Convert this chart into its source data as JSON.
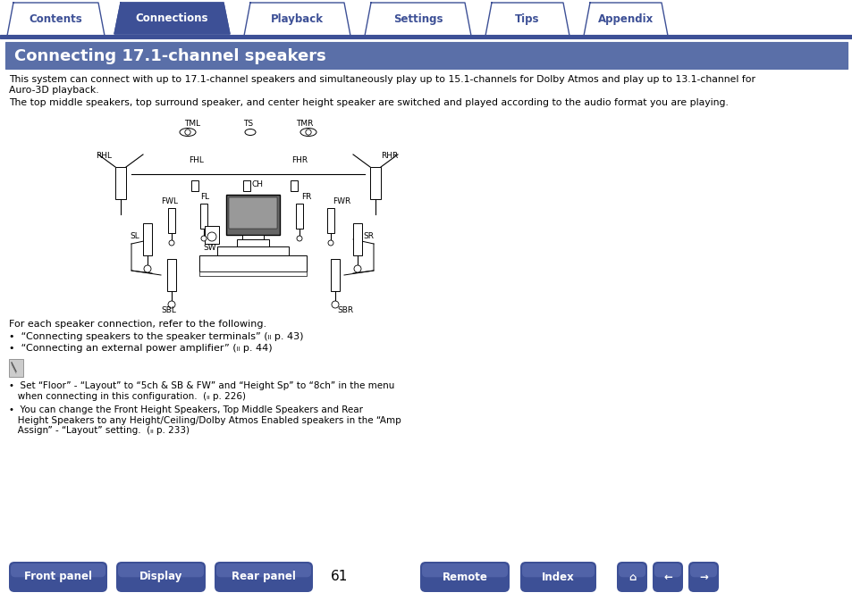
{
  "title": "Connecting 17.1-channel speakers",
  "title_bg": "#5a6fa8",
  "title_color": "#ffffff",
  "tab_items": [
    "Contents",
    "Connections",
    "Playback",
    "Settings",
    "Tips",
    "Appendix"
  ],
  "tab_active": 1,
  "tab_active_bg": "#3d5096",
  "tab_inactive_bg": "#ffffff",
  "tab_border": "#3d5096",
  "body_text_1": "This system can connect with up to 17.1-channel speakers and simultaneously play up to 15.1-channels for Dolby Atmos and play up to 13.1-channel for\nAuro-3D playback.",
  "body_text_2": "The top middle speakers, top surround speaker, and center height speaker are switched and played according to the audio format you are playing.",
  "for_each_text": "For each speaker connection, refer to the following.",
  "bullet1": "•  “Connecting speakers to the speaker terminals” (ₗₗ p. 43)",
  "bullet2": "•  “Connecting an external power amplifier” (ₗₗ p. 44)",
  "note_bullet1": "•  Set “Floor” - “Layout” to “5ch & SB & FW” and “Height Sp” to “8ch” in the menu\n   when connecting in this configuration.  (ₗₗ p. 226)",
  "note_bullet2": "•  You can change the Front Height Speakers, Top Middle Speakers and Rear\n   Height Speakers to any Height/Ceiling/Dolby Atmos Enabled speakers in the “Amp\n   Assign” - “Layout” setting.  (ₗₗ p. 233)",
  "bottom_buttons": [
    "Front panel",
    "Display",
    "Rear panel",
    "Remote",
    "Index"
  ],
  "page_number": "61",
  "button_bg": "#3d5096",
  "button_color": "#ffffff",
  "bg_color": "#ffffff",
  "nav_color": "#3d5096"
}
